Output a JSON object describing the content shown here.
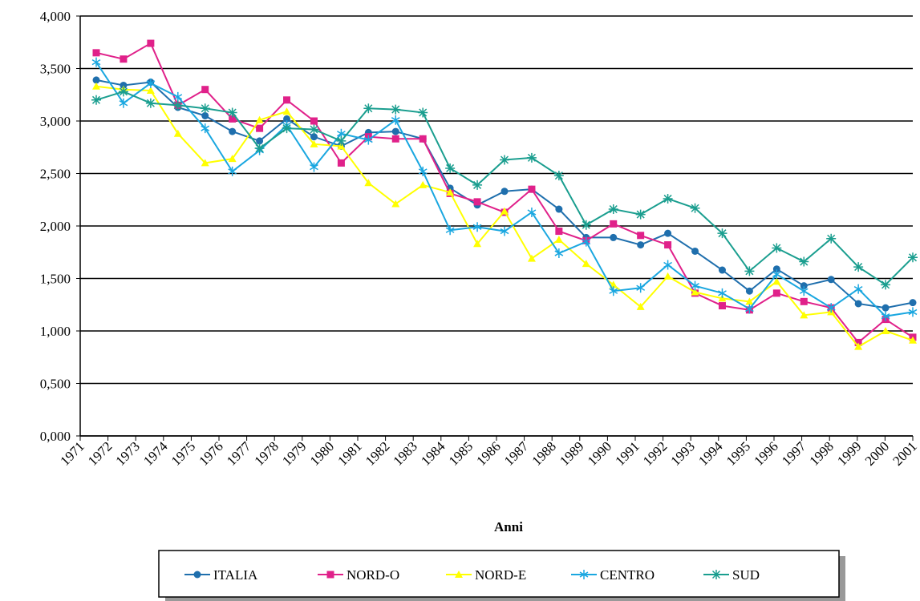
{
  "chart_data": {
    "type": "line",
    "x_label": "Anni",
    "categories": [
      "1971",
      "1972",
      "1973",
      "1974",
      "1975",
      "1976",
      "1977",
      "1978",
      "1979",
      "1980",
      "1981",
      "1982",
      "1983",
      "1984",
      "1985",
      "1986",
      "1987",
      "1988",
      "1989",
      "1990",
      "1991",
      "1992",
      "1993",
      "1994",
      "1995",
      "1996",
      "1997",
      "1998",
      "1999",
      "2000",
      "2001"
    ],
    "ylim": [
      0,
      4
    ],
    "yticks": [
      {
        "value": 0,
        "label": "0,000"
      },
      {
        "value": 0.5,
        "label": "0,500"
      },
      {
        "value": 1,
        "label": "1,000"
      },
      {
        "value": 1.5,
        "label": "1,500"
      },
      {
        "value": 2,
        "label": "2,000"
      },
      {
        "value": 2.5,
        "label": "2,500"
      },
      {
        "value": 3,
        "label": "3,000"
      },
      {
        "value": 3.5,
        "label": "3,500"
      },
      {
        "value": 4,
        "label": "4,000"
      }
    ],
    "grid": true,
    "legend": "bottom",
    "series": [
      {
        "name": "ITALIA",
        "color": "#1f6fad",
        "marker": "circle",
        "values": [
          3.39,
          3.34,
          3.37,
          3.13,
          3.05,
          2.9,
          2.81,
          3.02,
          2.85,
          2.76,
          2.89,
          2.9,
          2.83,
          2.36,
          2.2,
          2.33,
          2.35,
          2.16,
          1.89,
          1.89,
          1.82,
          1.93,
          1.76,
          1.58,
          1.38,
          1.59,
          1.43,
          1.49,
          1.26,
          1.22,
          1.27
        ]
      },
      {
        "name": "NORD-O",
        "color": "#e0218a",
        "marker": "square",
        "values": [
          3.65,
          3.59,
          3.74,
          3.15,
          3.3,
          3.02,
          2.93,
          3.2,
          3.0,
          2.6,
          2.85,
          2.83,
          2.83,
          2.31,
          2.23,
          2.13,
          2.35,
          1.95,
          1.86,
          2.02,
          1.91,
          1.82,
          1.36,
          1.24,
          1.2,
          1.36,
          1.28,
          1.22,
          0.89,
          1.11,
          0.94
        ]
      },
      {
        "name": "NORD-E",
        "color": "#ffff00",
        "marker": "triangle",
        "values": [
          3.33,
          3.3,
          3.29,
          2.88,
          2.6,
          2.64,
          3.01,
          3.09,
          2.78,
          2.76,
          2.41,
          2.21,
          2.39,
          2.32,
          1.83,
          2.14,
          1.69,
          1.87,
          1.64,
          1.44,
          1.23,
          1.52,
          1.37,
          1.31,
          1.28,
          1.47,
          1.15,
          1.18,
          0.85,
          1.0,
          0.91
        ]
      },
      {
        "name": "CENTRO",
        "color": "#1aa7e0",
        "marker": "star",
        "values": [
          3.56,
          3.17,
          3.36,
          3.23,
          2.93,
          2.52,
          2.72,
          2.96,
          2.56,
          2.88,
          2.82,
          3.01,
          2.52,
          1.96,
          1.99,
          1.95,
          2.13,
          1.74,
          1.85,
          1.38,
          1.41,
          1.63,
          1.43,
          1.36,
          1.21,
          1.54,
          1.38,
          1.22,
          1.4,
          1.14,
          1.18
        ]
      },
      {
        "name": "SUD",
        "color": "#1a9e8f",
        "marker": "asterisk",
        "values": [
          3.2,
          3.28,
          3.17,
          3.15,
          3.12,
          3.08,
          2.74,
          2.93,
          2.92,
          2.81,
          3.12,
          3.11,
          3.08,
          2.55,
          2.39,
          2.63,
          2.65,
          2.48,
          2.01,
          2.16,
          2.11,
          2.26,
          2.17,
          1.93,
          1.57,
          1.79,
          1.66,
          1.88,
          1.61,
          1.44,
          1.7
        ]
      }
    ]
  }
}
